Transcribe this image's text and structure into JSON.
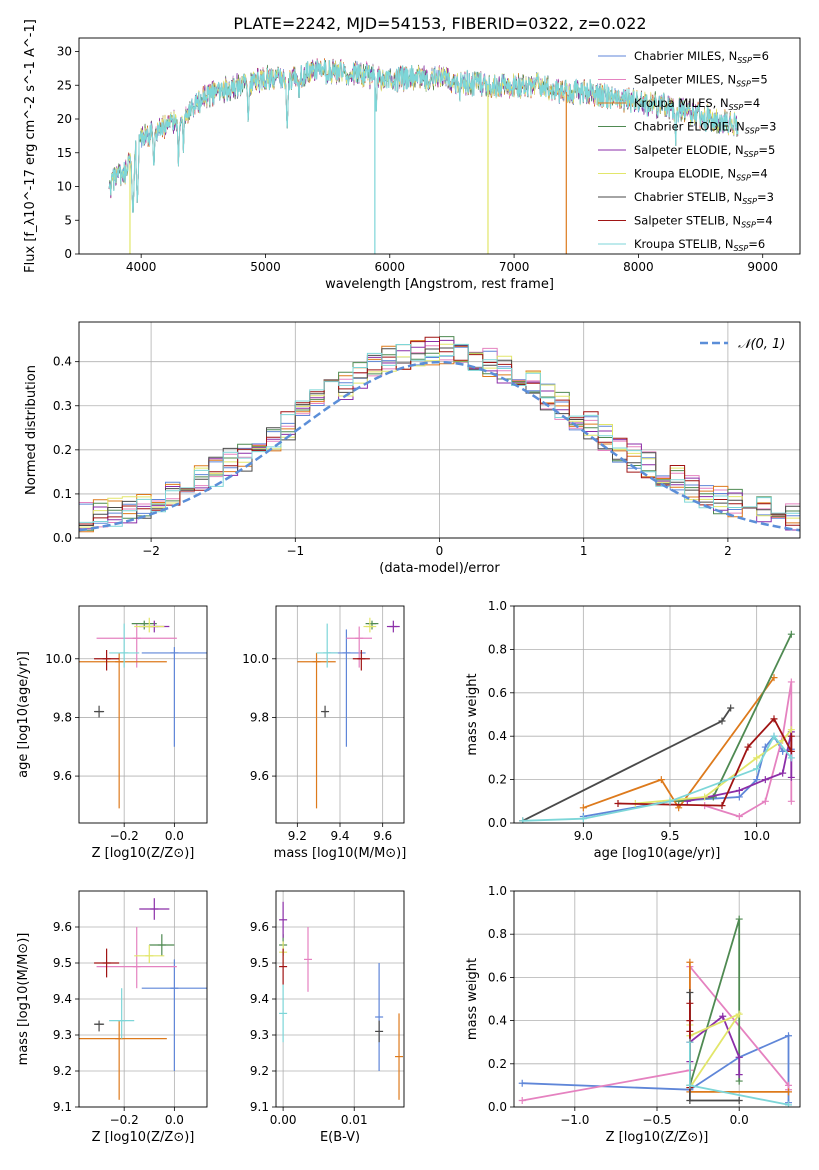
{
  "figure": {
    "title": "PLATE=2242, MJD=54153, FIBERID=0322, z=0.022"
  },
  "colors": {
    "Chabrier MILES": "#5f86d8",
    "Salpeter MILES": "#e582c0",
    "Kroupa MILES": "#dd7a1c",
    "Chabrier ELODIE": "#4f8a52",
    "Salpeter ELODIE": "#8b2ea8",
    "Kroupa ELODIE": "#e2e66a",
    "Chabrier STELIB": "#4a4a4a",
    "Salpeter STELIB": "#a01414",
    "Kroupa STELIB": "#7dd6d8",
    "normal_curve": "#5b8ed8",
    "grid": "#b0b0b0"
  },
  "chart_data": [
    {
      "id": "spectrum",
      "type": "line",
      "xlabel": "wavelength [Angstrom, rest frame]",
      "ylabel": "Flux [f_λ10^-17 erg cm^-2 s^-1 A^-1]",
      "xlim": [
        3500,
        9300
      ],
      "ylim": [
        0,
        32
      ],
      "xticks": [
        4000,
        5000,
        6000,
        7000,
        8000,
        9000
      ],
      "yticks": [
        0,
        5,
        10,
        15,
        20,
        25,
        30
      ],
      "grid": false,
      "legend_position": "top-right",
      "legend": [
        {
          "name": "Chabrier MILES, N_SSP=6",
          "color_key": "Chabrier MILES"
        },
        {
          "name": "Salpeter MILES, N_SSP=5",
          "color_key": "Salpeter MILES"
        },
        {
          "name": "Kroupa MILES, N_SSP=4",
          "color_key": "Kroupa MILES"
        },
        {
          "name": "Chabrier ELODIE, N_SSP=3",
          "color_key": "Chabrier ELODIE"
        },
        {
          "name": "Salpeter ELODIE, N_SSP=5",
          "color_key": "Salpeter ELODIE"
        },
        {
          "name": "Kroupa ELODIE, N_SSP=4",
          "color_key": "Kroupa ELODIE"
        },
        {
          "name": "Chabrier STELIB, N_SSP=3",
          "color_key": "Chabrier STELIB"
        },
        {
          "name": "Salpeter STELIB, N_SSP=4",
          "color_key": "Salpeter STELIB"
        },
        {
          "name": "Kroupa STELIB, N_SSP=6",
          "color_key": "Kroupa STELIB"
        }
      ],
      "continuum": {
        "x": [
          3740,
          3800,
          3850,
          3900,
          3950,
          4000,
          4100,
          4200,
          4300,
          4400,
          4500,
          4600,
          4800,
          5000,
          5200,
          5400,
          5600,
          5800,
          6000,
          6200,
          6400,
          6600,
          6800,
          7000,
          7200,
          7400,
          7600,
          7800,
          8000,
          8200,
          8400,
          8600,
          8800
        ],
        "y": [
          9,
          12,
          11,
          13,
          15,
          17,
          18,
          19,
          20,
          21,
          23,
          24,
          25,
          26,
          26,
          27,
          27,
          26.5,
          26,
          26,
          26,
          25.5,
          25,
          25,
          25,
          24,
          24,
          23,
          22.5,
          22,
          21,
          20,
          19
        ]
      },
      "features": [
        {
          "x": 3934,
          "y": 5
        },
        {
          "x": 3969,
          "y": 7
        },
        {
          "x": 4102,
          "y": 12
        },
        {
          "x": 4300,
          "y": 13
        },
        {
          "x": 4340,
          "y": 15
        },
        {
          "x": 4861,
          "y": 19
        },
        {
          "x": 5175,
          "y": 18
        },
        {
          "x": 5270,
          "y": 22
        },
        {
          "x": 5890,
          "y": 20
        },
        {
          "x": 6563,
          "y": 22
        },
        {
          "x": 8300,
          "y": 16
        },
        {
          "x": 8542,
          "y": 17
        },
        {
          "x": 8662,
          "y": 17
        }
      ],
      "dropouts": [
        {
          "x": 3910,
          "y": 0,
          "color_key": "Kroupa ELODIE"
        },
        {
          "x": 5880,
          "y": 0,
          "color_key": "Kroupa STELIB"
        },
        {
          "x": 6790,
          "y": 0,
          "color_key": "Kroupa ELODIE"
        },
        {
          "x": 7420,
          "y": 0,
          "color_key": "Kroupa MILES"
        }
      ]
    },
    {
      "id": "residuals",
      "type": "step-histogram",
      "xlabel": "(data-model)/error",
      "ylabel": "Normed distribution",
      "xlim": [
        -2.5,
        2.5
      ],
      "ylim": [
        0,
        0.49
      ],
      "xticks": [
        -2,
        -1,
        0,
        1,
        2
      ],
      "yticks": [
        0.0,
        0.1,
        0.2,
        0.3,
        0.4
      ],
      "grid": true,
      "bin_width": 0.1,
      "bin_start": -2.5,
      "legend_position": "top-right",
      "legend": [
        {
          "name": "𝒩(0, 1)",
          "color_key": "normal_curve",
          "style": "dashed"
        }
      ],
      "normal": {
        "mean": 0,
        "sigma": 1
      }
    },
    {
      "id": "age-vs-Z",
      "type": "scatter-errorbar",
      "xlabel": "Z [log10(Z/Z⊙)]",
      "ylabel": "age  [log10(age/yr)]",
      "xlim": [
        -0.38,
        0.13
      ],
      "ylim": [
        9.44,
        10.18
      ],
      "xticks": [
        -0.2,
        0.0
      ],
      "yticks": [
        9.6,
        9.8,
        10.0
      ],
      "grid": true,
      "points": [
        {
          "color_key": "Chabrier MILES",
          "x": 0.0,
          "xerr": 0.13,
          "y": 10.02,
          "yerr": [
            0.32,
            0.02
          ]
        },
        {
          "color_key": "Salpeter MILES",
          "x": -0.15,
          "xerr": 0.16,
          "y": 10.07,
          "yerr": [
            0.1,
            0.05
          ]
        },
        {
          "color_key": "Kroupa MILES",
          "x": -0.22,
          "xerr": 0.19,
          "y": 9.99,
          "yerr": [
            0.5,
            0.03
          ]
        },
        {
          "color_key": "Chabrier ELODIE",
          "x": -0.12,
          "xerr": 0.05,
          "y": 10.12,
          "yerr": [
            0.02,
            0.01
          ]
        },
        {
          "color_key": "Salpeter ELODIE",
          "x": -0.08,
          "xerr": 0.06,
          "y": 10.11,
          "yerr": [
            0.02,
            0.02
          ]
        },
        {
          "color_key": "Kroupa ELODIE",
          "x": -0.1,
          "xerr": 0.06,
          "y": 10.11,
          "yerr": [
            0.02,
            0.03
          ]
        },
        {
          "color_key": "Chabrier STELIB",
          "x": -0.3,
          "xerr": 0.02,
          "y": 9.82,
          "yerr": [
            0.02,
            0.02
          ]
        },
        {
          "color_key": "Salpeter STELIB",
          "x": -0.27,
          "xerr": 0.05,
          "y": 10.0,
          "yerr": [
            0.04,
            0.03
          ]
        },
        {
          "color_key": "Kroupa STELIB",
          "x": -0.2,
          "xerr": 0.06,
          "y": 10.02,
          "yerr": [
            0.05,
            0.1
          ]
        }
      ]
    },
    {
      "id": "age-vs-mass",
      "type": "scatter-errorbar",
      "xlabel": "mass [log10(M/M⊙)]",
      "ylabel": "",
      "xlim": [
        9.1,
        9.7
      ],
      "ylim": [
        9.44,
        10.18
      ],
      "xticks": [
        9.2,
        9.4,
        9.6
      ],
      "yticks": [
        9.6,
        9.8,
        10.0
      ],
      "grid": true,
      "points": [
        {
          "color_key": "Chabrier MILES",
          "x": 9.43,
          "xerr": 0.09,
          "y": 10.02,
          "yerr": [
            0.32,
            0.08
          ]
        },
        {
          "color_key": "Salpeter MILES",
          "x": 9.49,
          "xerr": 0.06,
          "y": 10.07,
          "yerr": [
            0.1,
            0.04
          ]
        },
        {
          "color_key": "Kroupa MILES",
          "x": 9.29,
          "xerr": 0.09,
          "y": 9.99,
          "yerr": [
            0.5,
            0.03
          ]
        },
        {
          "color_key": "Chabrier ELODIE",
          "x": 9.55,
          "xerr": 0.03,
          "y": 10.12,
          "yerr": [
            0.02,
            0.01
          ]
        },
        {
          "color_key": "Salpeter ELODIE",
          "x": 9.65,
          "xerr": 0.03,
          "y": 10.11,
          "yerr": [
            0.02,
            0.02
          ]
        },
        {
          "color_key": "Kroupa ELODIE",
          "x": 9.54,
          "xerr": 0.03,
          "y": 10.11,
          "yerr": [
            0.02,
            0.03
          ]
        },
        {
          "color_key": "Chabrier STELIB",
          "x": 9.33,
          "xerr": 0.01,
          "y": 9.82,
          "yerr": [
            0.02,
            0.02
          ]
        },
        {
          "color_key": "Salpeter STELIB",
          "x": 9.5,
          "xerr": 0.04,
          "y": 10.0,
          "yerr": [
            0.04,
            0.03
          ]
        },
        {
          "color_key": "Kroupa STELIB",
          "x": 9.34,
          "xerr": 0.05,
          "y": 10.02,
          "yerr": [
            0.05,
            0.1
          ]
        }
      ]
    },
    {
      "id": "massweight-vs-age",
      "type": "line",
      "xlabel": "age  [log10(age/yr)]",
      "ylabel": "mass weight",
      "xlim": [
        8.6,
        10.25
      ],
      "ylim": [
        0,
        1.0
      ],
      "xticks": [
        9.0,
        9.5,
        10.0
      ],
      "yticks": [
        0.0,
        0.2,
        0.4,
        0.6,
        0.8,
        1.0
      ],
      "grid": true,
      "series": [
        {
          "color_key": "Chabrier MILES",
          "x": [
            9.0,
            9.5,
            9.9,
            10.0,
            10.05,
            10.1,
            10.15,
            10.2
          ],
          "y": [
            0.03,
            0.1,
            0.12,
            0.2,
            0.35,
            0.4,
            0.33,
            0.34
          ]
        },
        {
          "color_key": "Salpeter MILES",
          "x": [
            9.7,
            9.9,
            10.05,
            10.15,
            10.2,
            10.2
          ],
          "y": [
            0.08,
            0.03,
            0.1,
            0.4,
            0.65,
            0.1
          ]
        },
        {
          "color_key": "Kroupa MILES",
          "x": [
            9.0,
            9.45,
            9.55,
            10.1
          ],
          "y": [
            0.07,
            0.2,
            0.07,
            0.67
          ]
        },
        {
          "color_key": "Chabrier ELODIE",
          "x": [
            9.55,
            9.75,
            10.2
          ],
          "y": [
            0.1,
            0.12,
            0.87
          ]
        },
        {
          "color_key": "Salpeter ELODIE",
          "x": [
            9.6,
            9.9,
            10.05,
            10.15,
            10.2,
            10.2
          ],
          "y": [
            0.1,
            0.15,
            0.2,
            0.23,
            0.42,
            0.21
          ]
        },
        {
          "color_key": "Kroupa ELODIE",
          "x": [
            9.3,
            9.7,
            10.0,
            10.15,
            10.2
          ],
          "y": [
            0.09,
            0.12,
            0.3,
            0.38,
            0.43
          ]
        },
        {
          "color_key": "Chabrier STELIB",
          "x": [
            8.65,
            9.8,
            9.85
          ],
          "y": [
            0.01,
            0.47,
            0.53
          ]
        },
        {
          "color_key": "Salpeter STELIB",
          "x": [
            9.2,
            9.8,
            9.95,
            10.1,
            10.2,
            10.2
          ],
          "y": [
            0.09,
            0.08,
            0.35,
            0.48,
            0.33,
            0.4
          ]
        },
        {
          "color_key": "Kroupa STELIB",
          "x": [
            8.65,
            9.0,
            9.5,
            10.0,
            10.1,
            10.2
          ],
          "y": [
            0.01,
            0.02,
            0.1,
            0.25,
            0.4,
            0.3
          ]
        }
      ]
    },
    {
      "id": "mass-vs-Z",
      "type": "scatter-errorbar",
      "xlabel": "Z [log10(Z/Z⊙)]",
      "ylabel": "mass [log10(M/M⊙)]",
      "xlim": [
        -0.38,
        0.13
      ],
      "ylim": [
        9.1,
        9.7
      ],
      "xticks": [
        -0.2,
        0.0
      ],
      "yticks": [
        9.1,
        9.2,
        9.3,
        9.4,
        9.5,
        9.6
      ],
      "grid": true,
      "points": [
        {
          "color_key": "Chabrier MILES",
          "x": 0.0,
          "xerr": 0.13,
          "y": 9.43,
          "yerr": [
            0.23,
            0.08
          ]
        },
        {
          "color_key": "Salpeter MILES",
          "x": -0.15,
          "xerr": 0.16,
          "y": 9.49,
          "yerr": [
            0.06,
            0.11
          ]
        },
        {
          "color_key": "Kroupa MILES",
          "x": -0.22,
          "xerr": 0.19,
          "y": 9.29,
          "yerr": [
            0.17,
            0.05
          ]
        },
        {
          "color_key": "Chabrier ELODIE",
          "x": -0.05,
          "xerr": 0.05,
          "y": 9.55,
          "yerr": [
            0.03,
            0.03
          ]
        },
        {
          "color_key": "Salpeter ELODIE",
          "x": -0.08,
          "xerr": 0.06,
          "y": 9.65,
          "yerr": [
            0.03,
            0.03
          ]
        },
        {
          "color_key": "Kroupa ELODIE",
          "x": -0.1,
          "xerr": 0.06,
          "y": 9.52,
          "yerr": [
            0.02,
            0.03
          ]
        },
        {
          "color_key": "Chabrier STELIB",
          "x": -0.3,
          "xerr": 0.02,
          "y": 9.33,
          "yerr": [
            0.02,
            0.01
          ]
        },
        {
          "color_key": "Salpeter STELIB",
          "x": -0.27,
          "xerr": 0.05,
          "y": 9.5,
          "yerr": [
            0.04,
            0.04
          ]
        },
        {
          "color_key": "Kroupa STELIB",
          "x": -0.21,
          "xerr": 0.05,
          "y": 9.34,
          "yerr": [
            0.05,
            0.09
          ]
        }
      ]
    },
    {
      "id": "mass-vs-EBV",
      "type": "scatter-errorbar",
      "xlabel": "E(B-V)",
      "ylabel": "",
      "xlim": [
        -0.001,
        0.017
      ],
      "ylim": [
        9.1,
        9.7
      ],
      "xticks": [
        0.0,
        0.01
      ],
      "yticks": [
        9.1,
        9.2,
        9.3,
        9.4,
        9.5,
        9.6
      ],
      "grid": true,
      "points": [
        {
          "color_key": "Chabrier MILES",
          "x": 0.0135,
          "xerr": 0,
          "y": 9.35,
          "yerr": [
            0.15,
            0.15
          ]
        },
        {
          "color_key": "Salpeter MILES",
          "x": 0.0035,
          "xerr": 0,
          "y": 9.51,
          "yerr": [
            0.09,
            0.09
          ]
        },
        {
          "color_key": "Kroupa MILES",
          "x": 0.0163,
          "xerr": 0,
          "y": 9.24,
          "yerr": [
            0.12,
            0.12
          ]
        },
        {
          "color_key": "Chabrier ELODIE",
          "x": 0.0,
          "xerr": 0,
          "y": 9.55,
          "yerr": [
            0.03,
            0.03
          ]
        },
        {
          "color_key": "Salpeter ELODIE",
          "x": 0.0,
          "xerr": 0,
          "y": 9.62,
          "yerr": [
            0.05,
            0.05
          ]
        },
        {
          "color_key": "Kroupa ELODIE",
          "x": 0.0,
          "xerr": 0,
          "y": 9.53,
          "yerr": [
            0.03,
            0.03
          ]
        },
        {
          "color_key": "Chabrier STELIB",
          "x": 0.0135,
          "xerr": 0,
          "y": 9.31,
          "yerr": [
            0.03,
            0.03
          ]
        },
        {
          "color_key": "Salpeter STELIB",
          "x": 0.0,
          "xerr": 0,
          "y": 9.49,
          "yerr": [
            0.05,
            0.05
          ]
        },
        {
          "color_key": "Kroupa STELIB",
          "x": 0.0,
          "xerr": 0,
          "y": 9.36,
          "yerr": [
            0.08,
            0.08
          ]
        }
      ]
    },
    {
      "id": "massweight-vs-Z",
      "type": "line",
      "xlabel": "Z [log10(Z/Z⊙)]",
      "ylabel": "mass weight",
      "xlim": [
        -1.37,
        0.37
      ],
      "ylim": [
        0,
        1.0
      ],
      "xticks": [
        -1.0,
        -0.5,
        0.0
      ],
      "yticks": [
        0.0,
        0.2,
        0.4,
        0.6,
        0.8,
        1.0
      ],
      "grid": true,
      "series": [
        {
          "color_key": "Chabrier MILES",
          "x": [
            -1.32,
            -0.3,
            0.0,
            0.3,
            0.3
          ],
          "y": [
            0.11,
            0.08,
            0.23,
            0.33,
            0.02
          ]
        },
        {
          "color_key": "Salpeter MILES",
          "x": [
            -1.32,
            -0.3,
            -0.3,
            0.3,
            0.3
          ],
          "y": [
            0.03,
            0.17,
            0.65,
            0.1,
            0.08
          ]
        },
        {
          "color_key": "Kroupa MILES",
          "x": [
            -0.3,
            -0.3,
            0.3
          ],
          "y": [
            0.67,
            0.07,
            0.07
          ]
        },
        {
          "color_key": "Chabrier ELODIE",
          "x": [
            -0.3,
            0.0,
            0.0
          ],
          "y": [
            0.1,
            0.87,
            0.12
          ]
        },
        {
          "color_key": "Salpeter ELODIE",
          "x": [
            -0.3,
            -0.3,
            -0.1,
            0.0,
            0.0
          ],
          "y": [
            0.21,
            0.3,
            0.42,
            0.23,
            0.15
          ]
        },
        {
          "color_key": "Kroupa ELODIE",
          "x": [
            -0.3,
            -0.3,
            0.0,
            -0.3
          ],
          "y": [
            0.38,
            0.33,
            0.43,
            0.09
          ]
        },
        {
          "color_key": "Chabrier STELIB",
          "x": [
            -0.3,
            -0.3,
            0.0
          ],
          "y": [
            0.53,
            0.03,
            0.03
          ]
        },
        {
          "color_key": "Salpeter STELIB",
          "x": [
            -0.3,
            -0.3,
            -0.3,
            -0.3
          ],
          "y": [
            0.48,
            0.4,
            0.35,
            0.09
          ]
        },
        {
          "color_key": "Kroupa STELIB",
          "x": [
            -0.3,
            -0.3,
            0.3
          ],
          "y": [
            0.3,
            0.1,
            0.01
          ]
        }
      ]
    }
  ]
}
